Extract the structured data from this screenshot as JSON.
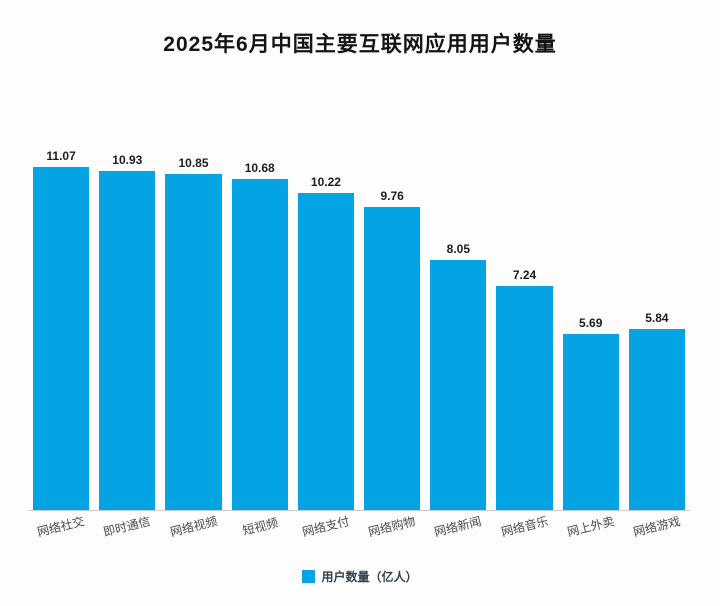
{
  "chart_data": {
    "type": "bar",
    "title": "2025年6月中国主要互联网应用用户数量",
    "categories": [
      "网络社交",
      "即时通信",
      "网络视频",
      "短视频",
      "网络支付",
      "网络购物",
      "网络新闻",
      "网络音乐",
      "网上外卖",
      "网络游戏"
    ],
    "values": [
      11.07,
      10.93,
      10.85,
      10.68,
      10.22,
      9.76,
      8.05,
      7.24,
      5.69,
      5.84
    ],
    "legend": "用户数量（亿人）",
    "bar_color": "#04a3e3",
    "value_label_color": "#1c1c1c",
    "ylim": [
      0,
      11.5
    ],
    "grid": false,
    "legend_position": "bottom"
  }
}
